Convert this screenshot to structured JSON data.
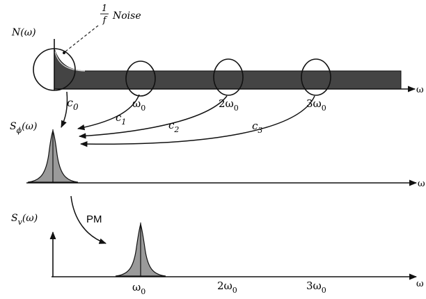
{
  "colors": {
    "ink": "#111111",
    "noise_fill": "#444444",
    "peak_fill": "#9a9a9a",
    "background": "#ffffff"
  },
  "labels": {
    "noise_fraction_num": "1",
    "noise_fraction_den": "f",
    "noise_word": "Noise",
    "n_omega": "N(ω)",
    "s_phi_base": "S",
    "s_phi_sub": "ϕ",
    "s_phi_arg": "(ω)",
    "s_v_base": "S",
    "s_v_sub": "v",
    "s_v_arg": "(ω)",
    "pm": "PM",
    "omega_axis": "ω"
  },
  "coefficients": [
    {
      "base": "c",
      "sub": "0"
    },
    {
      "base": "c",
      "sub": "1"
    },
    {
      "base": "c",
      "sub": "2"
    },
    {
      "base": "c",
      "sub": "3"
    }
  ],
  "harmonics_top": [
    {
      "prefix": "",
      "base": "ω",
      "sub": "0"
    },
    {
      "prefix": "2",
      "base": "ω",
      "sub": "0"
    },
    {
      "prefix": "3",
      "base": "ω",
      "sub": "0"
    }
  ],
  "harmonics_bottom": [
    {
      "prefix": "",
      "base": "ω",
      "sub": "0"
    },
    {
      "prefix": "2",
      "base": "ω",
      "sub": "0"
    },
    {
      "prefix": "3",
      "base": "ω",
      "sub": "0"
    }
  ]
}
